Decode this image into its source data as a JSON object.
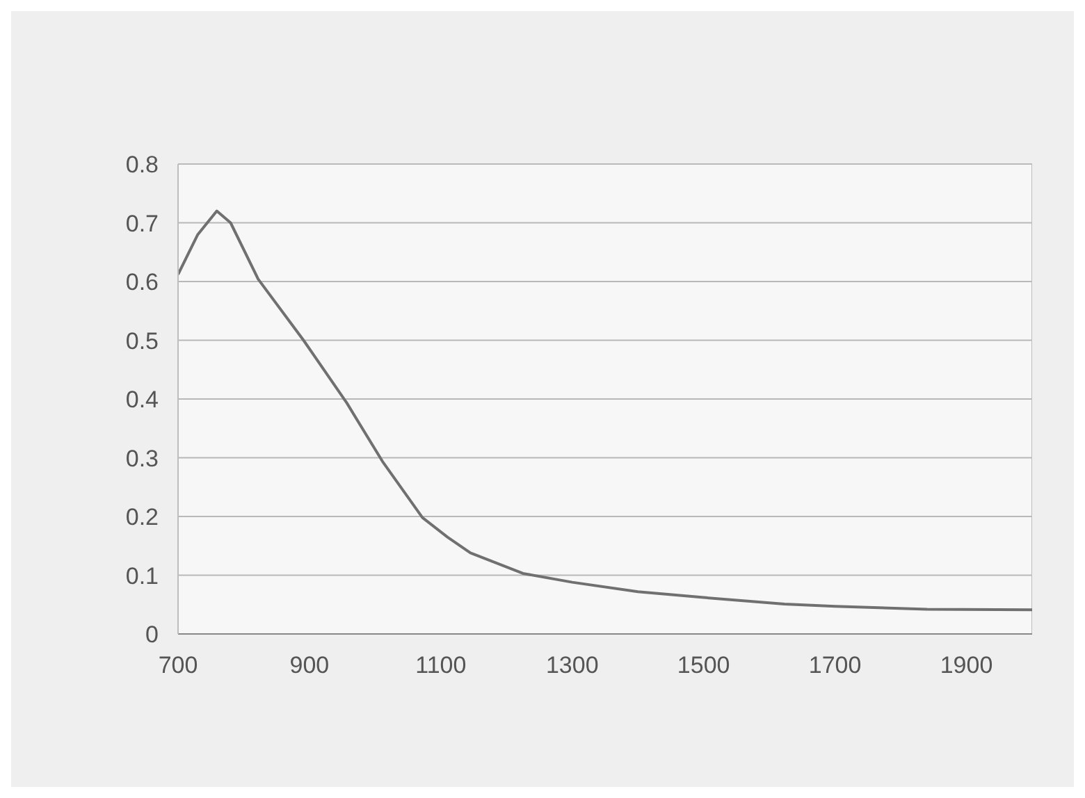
{
  "chart_data": {
    "type": "line",
    "x": [
      700,
      730,
      759,
      780,
      822,
      891,
      957,
      1011,
      1072,
      1110,
      1145,
      1225,
      1300,
      1400,
      1500,
      1623,
      1700,
      1840,
      2000
    ],
    "series": [
      {
        "color": "#707070",
        "values": [
          0.612,
          0.68,
          0.72,
          0.7,
          0.604,
          0.5,
          0.393,
          0.294,
          0.198,
          0.165,
          0.138,
          0.103,
          0.088,
          0.072,
          0.062,
          0.051,
          0.047,
          0.042,
          0.041
        ]
      }
    ],
    "xlim": [
      700,
      2000
    ],
    "xticks": [
      700,
      900,
      1100,
      1300,
      1500,
      1700,
      1900
    ],
    "ylim": [
      0,
      0.8
    ],
    "yticks": [
      0,
      0.1,
      0.2,
      0.3,
      0.4,
      0.5,
      0.6,
      0.7,
      0.8
    ],
    "grid": "y",
    "marker": "none"
  }
}
